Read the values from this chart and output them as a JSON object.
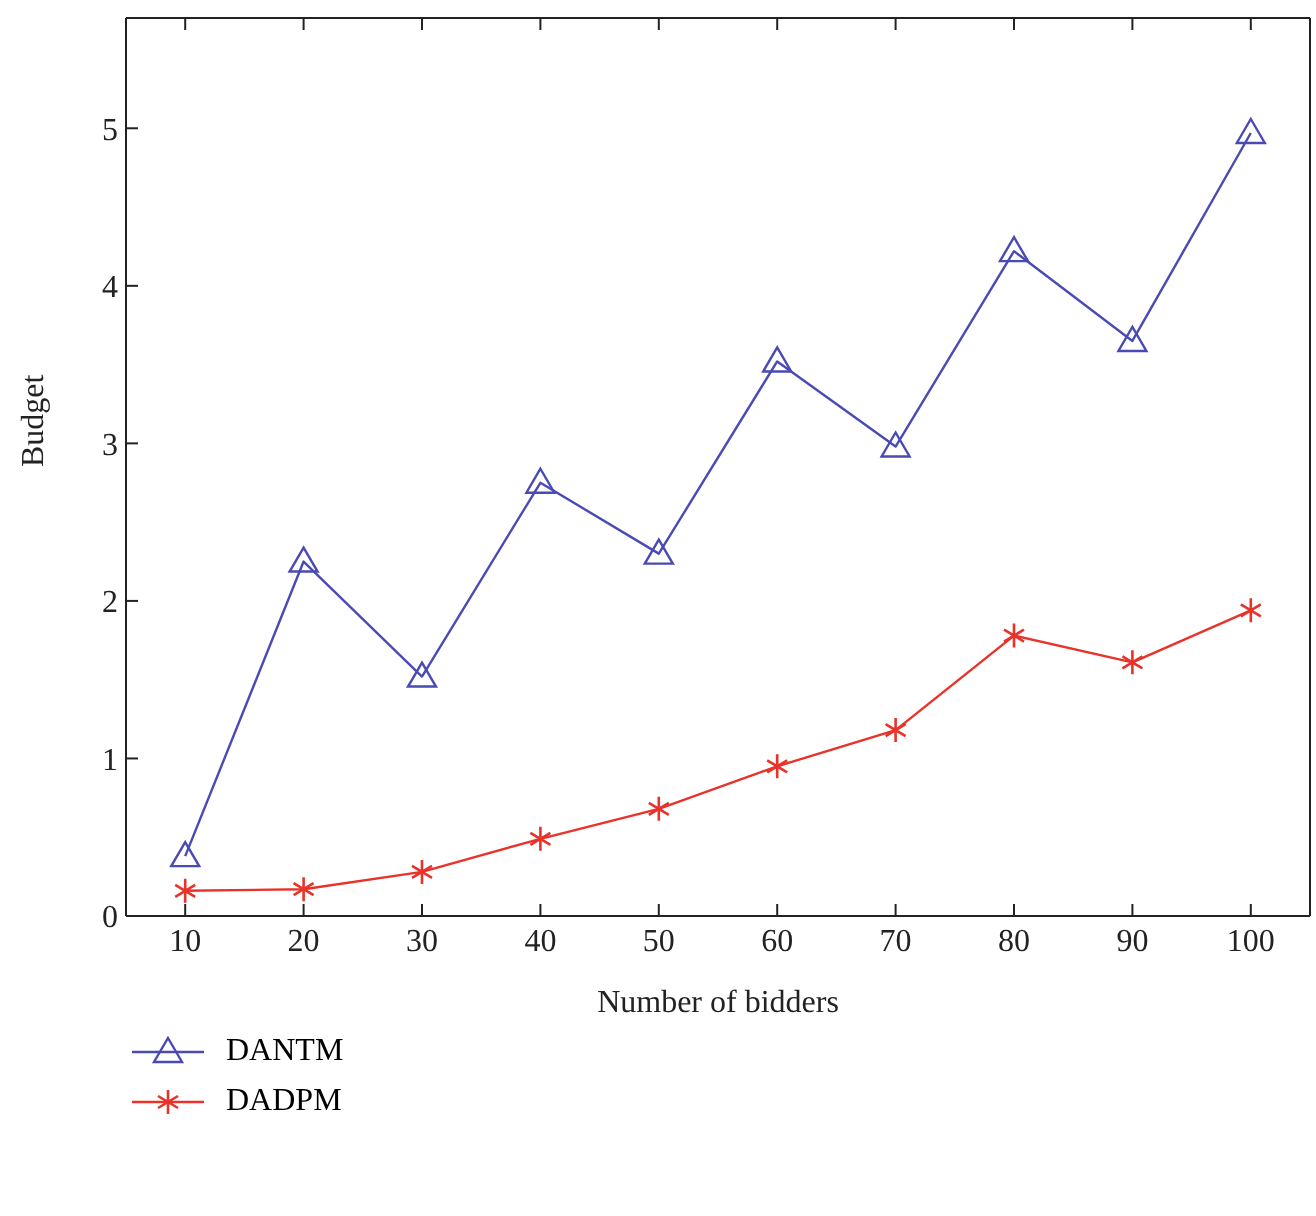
{
  "chart_data": {
    "type": "line",
    "xlabel": "Number of bidders",
    "ylabel": "Budget",
    "x": [
      10,
      20,
      30,
      40,
      50,
      60,
      70,
      80,
      90,
      100
    ],
    "series": [
      {
        "name": "DANTM",
        "color": "#4a4ab4",
        "marker": "triangle",
        "values": [
          0.38,
          2.25,
          1.52,
          2.75,
          2.3,
          3.52,
          2.98,
          4.22,
          3.65,
          4.97
        ]
      },
      {
        "name": "DADPM",
        "color": "#e8322a",
        "marker": "cross",
        "values": [
          0.16,
          0.17,
          0.28,
          0.49,
          0.68,
          0.95,
          1.18,
          1.78,
          1.61,
          1.94
        ]
      }
    ],
    "xlim": [
      5,
      105
    ],
    "xticks": [
      10,
      20,
      30,
      40,
      50,
      60,
      70,
      80,
      90,
      100
    ],
    "ylim": [
      0,
      5.7
    ],
    "yticks": [
      0,
      1,
      2,
      3,
      4,
      5
    ],
    "grid": false,
    "legend": "bottom left",
    "line_style": "solid"
  }
}
